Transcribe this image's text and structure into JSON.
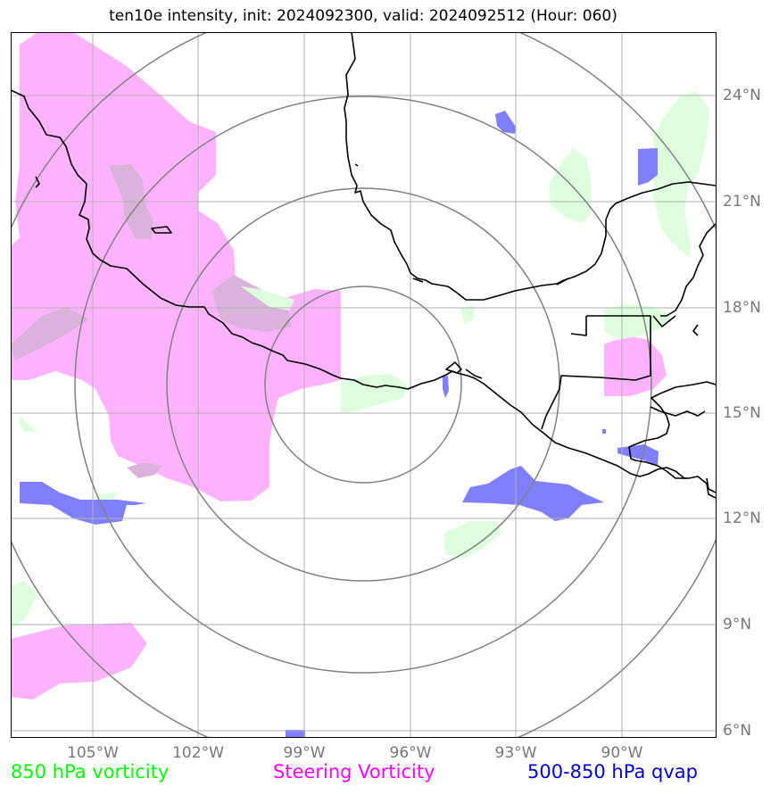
{
  "title": "ten10e intensity, init: 2024092300, valid: 2024092512 (Hour: 060)",
  "lat_labels": [
    "24°N",
    "21°N",
    "18°N",
    "15°N",
    "12°N",
    "9°N",
    "6°N"
  ],
  "lon_labels": [
    "105°W",
    "102°W",
    "99°W",
    "96°W",
    "93°W",
    "90°W"
  ],
  "legend": [
    {
      "label": "850 hPa vorticity",
      "color": "#00ff00"
    },
    {
      "label": "Steering Vorticity",
      "color": "#ff00ff"
    },
    {
      "label": "500-850 hPa qvap",
      "color": "#0000cc"
    }
  ],
  "colors": {
    "vort850_fill": "#ddffdd",
    "steering_fill": "#ffb3ff",
    "overlap_fill": "#d9b3d9",
    "qvap_fill": "#7f7fff",
    "grid": "#b0b0b0",
    "rings": "#808080",
    "coast": "#000000"
  }
}
